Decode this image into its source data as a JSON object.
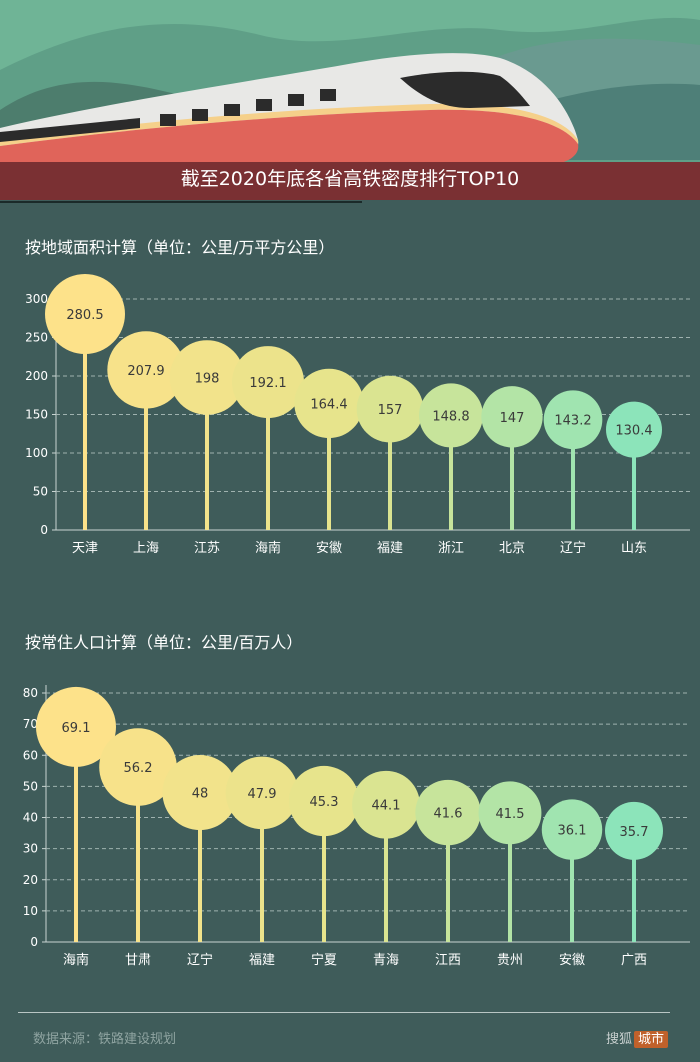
{
  "header": {
    "title": "截至2020年底各省高铁密度排行TOP10"
  },
  "colors": {
    "background": "#3f5c5a",
    "sky": "#6fb496",
    "banner": "#7a3033",
    "train_red": "#e0645a",
    "train_body": "#e8e8e6",
    "stripe": "#f5d08a"
  },
  "chart_data": [
    {
      "type": "bar",
      "title": "按地域面积计算（单位：公里/万平方公里）",
      "categories": [
        "天津",
        "上海",
        "江苏",
        "海南",
        "安徽",
        "福建",
        "浙江",
        "北京",
        "辽宁",
        "山东"
      ],
      "values": [
        280.5,
        207.9,
        198,
        192.1,
        164.4,
        157,
        148.8,
        147,
        143.2,
        130.4
      ],
      "value_labels": [
        "280.5",
        "207.9",
        "198",
        "192.1",
        "164.4",
        "157",
        "148.8",
        "147",
        "143.2",
        "130.4"
      ],
      "yticks": [
        "0",
        "50",
        "100",
        "150",
        "200",
        "250",
        "300"
      ],
      "ylim": [
        0,
        300
      ],
      "grid": true
    },
    {
      "type": "bar",
      "title": "按常住人口计算（单位：公里/百万人）",
      "categories": [
        "海南",
        "甘肃",
        "辽宁",
        "福建",
        "宁夏",
        "青海",
        "江西",
        "贵州",
        "安徽",
        "广西"
      ],
      "values": [
        69.1,
        56.2,
        48,
        47.9,
        45.3,
        44.1,
        41.6,
        41.5,
        36.1,
        35.7
      ],
      "value_labels": [
        "69.1",
        "56.2",
        "48",
        "47.9",
        "45.3",
        "44.1",
        "41.6",
        "41.5",
        "36.1",
        "35.7"
      ],
      "yticks": [
        "0",
        "10",
        "20",
        "30",
        "40",
        "50",
        "60",
        "70",
        "80"
      ],
      "ylim": [
        0,
        80
      ],
      "grid": true
    }
  ],
  "footer": {
    "source": "数据来源：铁路建设规划",
    "logo_text": "搜狐",
    "logo_city": "城市"
  }
}
